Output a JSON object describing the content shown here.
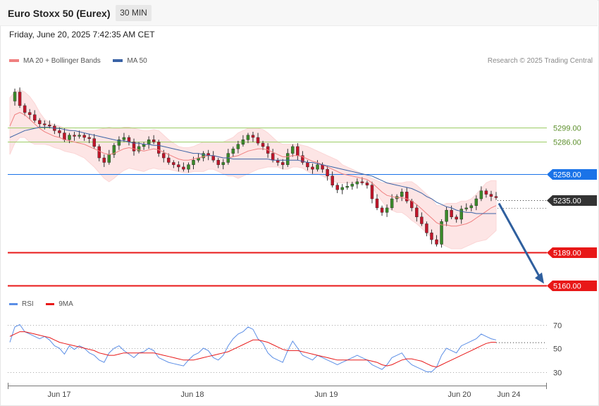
{
  "header": {
    "title": "Euro Stoxx 50 (Eurex)",
    "timeframe": "30 MIN",
    "datetime": "Friday, June 20, 2025 7:42:35 AM CET"
  },
  "legend": {
    "ma20_label": "MA 20 + Bollinger Bands",
    "ma50_label": "MA 50",
    "ma20_color": "#f08080",
    "ma50_color": "#3a63a6",
    "copyright": "Research © 2025 Trading Central"
  },
  "rsi_legend": {
    "rsi_label": "RSI",
    "ma_label": "9MA",
    "rsi_color": "#5b8ee6",
    "ma_color": "#e81818"
  },
  "chart_data": [
    {
      "type": "candlestick",
      "price_range": [
        5152,
        5318
      ],
      "levels": [
        {
          "value": 5299.0,
          "label": "5299.00",
          "color": "#9ccc65",
          "kind": "resistance"
        },
        {
          "value": 5286.0,
          "label": "5286.00",
          "color": "#9ccc65",
          "kind": "resistance"
        },
        {
          "value": 5258.0,
          "label": "5258.00",
          "color": "#1a73e8",
          "kind": "pivot"
        },
        {
          "value": 5235.0,
          "label": "5235.00",
          "color": "#333333",
          "kind": "last"
        },
        {
          "value": 5189.0,
          "label": "5189.00",
          "color": "#e81818",
          "kind": "support"
        },
        {
          "value": 5160.0,
          "label": "5160.00",
          "color": "#e81818",
          "kind": "support"
        }
      ],
      "x_ticks": [
        "Jun 17",
        "Jun 18",
        "Jun 19",
        "Jun 20",
        "Jun 24"
      ],
      "close_path": [
        5322,
        5330,
        5318,
        5312,
        5310,
        5305,
        5302,
        5301,
        5300,
        5296,
        5294,
        5288,
        5292,
        5291,
        5292,
        5290,
        5289,
        5282,
        5272,
        5268,
        5275,
        5283,
        5288,
        5290,
        5286,
        5278,
        5282,
        5284,
        5288,
        5286,
        5276,
        5272,
        5268,
        5266,
        5264,
        5262,
        5266,
        5270,
        5272,
        5276,
        5274,
        5270,
        5266,
        5268,
        5276,
        5280,
        5284,
        5288,
        5292,
        5290,
        5285,
        5282,
        5276,
        5270,
        5268,
        5266,
        5276,
        5282,
        5274,
        5268,
        5264,
        5262,
        5266,
        5262,
        5256,
        5248,
        5244,
        5246,
        5247,
        5249,
        5251,
        5250,
        5248,
        5236,
        5228,
        5224,
        5228,
        5236,
        5238,
        5242,
        5234,
        5228,
        5220,
        5214,
        5206,
        5200,
        5196,
        5216,
        5226,
        5220,
        5218,
        5227,
        5228,
        5230,
        5236,
        5243,
        5240,
        5238,
        5237
      ],
      "bands": {
        "ma20": [
          5300,
          5310,
          5312,
          5310,
          5306,
          5302,
          5298,
          5295,
          5293,
          5291,
          5290,
          5288,
          5287,
          5286,
          5285,
          5284,
          5282,
          5280,
          5278,
          5276,
          5275,
          5276,
          5278,
          5280,
          5281,
          5280,
          5279,
          5278,
          5279,
          5280,
          5279,
          5277,
          5275,
          5273,
          5271,
          5270,
          5270,
          5271,
          5272,
          5273,
          5274,
          5274,
          5273,
          5272,
          5272,
          5273,
          5274,
          5276,
          5278,
          5279,
          5280,
          5280,
          5279,
          5277,
          5275,
          5273,
          5273,
          5274,
          5274,
          5273,
          5271,
          5269,
          5268,
          5266,
          5264,
          5262,
          5260,
          5258,
          5257,
          5256,
          5255,
          5254,
          5253,
          5250,
          5246,
          5242,
          5239,
          5238,
          5237,
          5237,
          5236,
          5234,
          5231,
          5227,
          5223,
          5219,
          5215,
          5213,
          5213,
          5212,
          5212,
          5213,
          5214,
          5216,
          5219,
          5222,
          5225,
          5228,
          5230
        ],
        "ma50": [
          5290,
          5292,
          5294,
          5296,
          5297,
          5298,
          5299,
          5299,
          5299,
          5298,
          5298,
          5297,
          5296,
          5296,
          5295,
          5294,
          5293,
          5292,
          5291,
          5290,
          5289,
          5288,
          5287,
          5287,
          5286,
          5285,
          5285,
          5284,
          5284,
          5283,
          5283,
          5282,
          5281,
          5280,
          5279,
          5278,
          5277,
          5276,
          5276,
          5275,
          5274,
          5274,
          5273,
          5272,
          5272,
          5271,
          5271,
          5271,
          5271,
          5271,
          5271,
          5271,
          5271,
          5270,
          5270,
          5270,
          5270,
          5270,
          5270,
          5269,
          5268,
          5268,
          5267,
          5266,
          5265,
          5264,
          5263,
          5262,
          5261,
          5260,
          5259,
          5258,
          5257,
          5256,
          5254,
          5252,
          5250,
          5249,
          5248,
          5247,
          5246,
          5245,
          5243,
          5241,
          5238,
          5236,
          5233,
          5231,
          5229,
          5228,
          5226,
          5225,
          5224,
          5224,
          5223,
          5223,
          5223,
          5223,
          5223
        ],
        "upper": [
          5325,
          5330,
          5332,
          5330,
          5326,
          5320,
          5312,
          5306,
          5303,
          5301,
          5300,
          5298,
          5297,
          5296,
          5296,
          5296,
          5296,
          5296,
          5297,
          5298,
          5299,
          5298,
          5298,
          5299,
          5299,
          5298,
          5297,
          5296,
          5296,
          5297,
          5296,
          5292,
          5288,
          5285,
          5282,
          5281,
          5281,
          5282,
          5284,
          5286,
          5286,
          5286,
          5286,
          5286,
          5288,
          5290,
          5294,
          5296,
          5298,
          5298,
          5298,
          5297,
          5294,
          5290,
          5286,
          5284,
          5284,
          5284,
          5284,
          5283,
          5282,
          5280,
          5278,
          5276,
          5274,
          5272,
          5270,
          5266,
          5264,
          5262,
          5260,
          5258,
          5256,
          5254,
          5252,
          5250,
          5250,
          5250,
          5250,
          5250,
          5251,
          5251,
          5248,
          5244,
          5240,
          5236,
          5230,
          5230,
          5232,
          5232,
          5232,
          5234,
          5234,
          5236,
          5240,
          5245,
          5250,
          5252,
          5252
        ],
        "lower": [
          5275,
          5285,
          5290,
          5290,
          5286,
          5284,
          5284,
          5284,
          5283,
          5281,
          5280,
          5278,
          5277,
          5276,
          5274,
          5272,
          5268,
          5264,
          5259,
          5254,
          5251,
          5254,
          5258,
          5261,
          5263,
          5262,
          5261,
          5260,
          5262,
          5263,
          5262,
          5262,
          5262,
          5261,
          5260,
          5259,
          5259,
          5260,
          5260,
          5260,
          5262,
          5262,
          5260,
          5258,
          5256,
          5256,
          5254,
          5256,
          5258,
          5260,
          5262,
          5263,
          5264,
          5264,
          5264,
          5262,
          5262,
          5264,
          5264,
          5263,
          5260,
          5258,
          5258,
          5256,
          5254,
          5252,
          5250,
          5250,
          5250,
          5250,
          5250,
          5250,
          5250,
          5246,
          5240,
          5234,
          5228,
          5226,
          5224,
          5224,
          5221,
          5217,
          5214,
          5210,
          5206,
          5202,
          5200,
          5196,
          5194,
          5192,
          5192,
          5192,
          5194,
          5196,
          5198,
          5199,
          5200,
          5204,
          5208
        ]
      },
      "projection": {
        "from": 5232,
        "to": 5160,
        "color": "#2f5f9e"
      }
    },
    {
      "type": "line",
      "title": "RSI",
      "ylim": [
        20,
        80
      ],
      "y_ticks": [
        70,
        50,
        30
      ],
      "series": [
        {
          "name": "RSI",
          "values": [
            55,
            68,
            70,
            64,
            62,
            60,
            58,
            60,
            57,
            52,
            50,
            45,
            52,
            49,
            52,
            50,
            46,
            44,
            40,
            38,
            46,
            50,
            52,
            48,
            45,
            42,
            46,
            47,
            50,
            48,
            42,
            40,
            38,
            37,
            36,
            35,
            40,
            44,
            46,
            50,
            48,
            42,
            40,
            44,
            52,
            58,
            62,
            64,
            68,
            66,
            58,
            54,
            46,
            42,
            40,
            38,
            48,
            56,
            50,
            44,
            42,
            40,
            44,
            42,
            40,
            38,
            36,
            38,
            40,
            42,
            44,
            42,
            40,
            36,
            34,
            32,
            36,
            42,
            44,
            46,
            40,
            36,
            34,
            32,
            30,
            30,
            34,
            44,
            50,
            48,
            46,
            52,
            54,
            56,
            58,
            62,
            60,
            58,
            57
          ]
        },
        {
          "name": "9MA",
          "values": [
            60,
            62,
            64,
            64,
            63,
            62,
            61,
            60,
            59,
            57,
            55,
            54,
            53,
            52,
            51,
            50,
            49,
            48,
            46,
            45,
            44,
            44,
            45,
            46,
            46,
            46,
            46,
            46,
            46,
            46,
            45,
            44,
            43,
            42,
            41,
            40,
            40,
            40,
            41,
            42,
            43,
            44,
            45,
            46,
            47,
            49,
            51,
            53,
            55,
            57,
            57,
            56,
            55,
            53,
            51,
            49,
            48,
            48,
            48,
            47,
            46,
            45,
            44,
            43,
            42,
            41,
            40,
            40,
            40,
            40,
            40,
            40,
            40,
            39,
            38,
            36,
            35,
            36,
            38,
            40,
            41,
            41,
            40,
            39,
            37,
            35,
            34,
            36,
            38,
            40,
            42,
            44,
            46,
            48,
            50,
            52,
            54,
            55,
            55
          ]
        }
      ]
    }
  ]
}
